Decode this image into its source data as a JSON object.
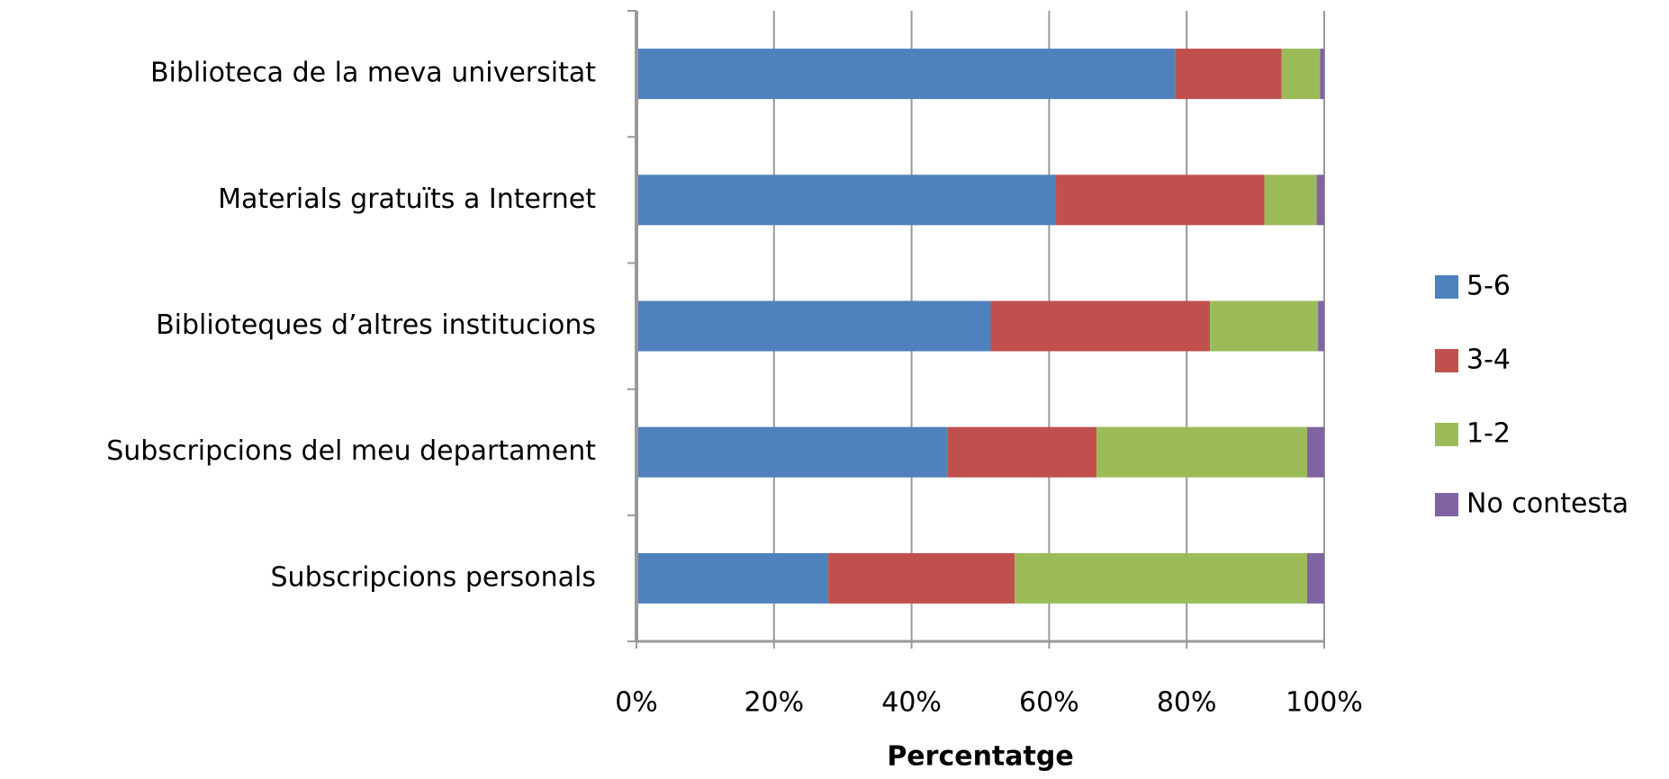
{
  "chart_data": {
    "type": "stacked-bar-horizontal",
    "categories": [
      "Biblioteca de la meva universitat",
      "Materials gratuïts a Internet",
      "Biblioteques d’altres institucions",
      "Subscripcions del meu departament",
      "Subscripcions personals"
    ],
    "series": [
      {
        "name": "5-6",
        "color": "#4f81bd",
        "values": [
          78.3,
          61.0,
          51.5,
          45.2,
          27.9
        ]
      },
      {
        "name": "3-4",
        "color": "#c0504d",
        "values": [
          15.5,
          30.3,
          31.9,
          21.7,
          27.1
        ]
      },
      {
        "name": "1-2",
        "color": "#9bbb59",
        "values": [
          5.6,
          7.6,
          15.7,
          30.6,
          42.5
        ]
      },
      {
        "name": "No contesta",
        "color": "#8064a2",
        "values": [
          0.6,
          1.1,
          0.9,
          2.5,
          2.5
        ]
      }
    ],
    "xlabel": "Percentatge",
    "xlim": [
      0,
      100
    ],
    "xticks": [
      {
        "value": 0,
        "label": "0%"
      },
      {
        "value": 20,
        "label": "20%"
      },
      {
        "value": 40,
        "label": "40%"
      },
      {
        "value": 60,
        "label": "60%"
      },
      {
        "value": 80,
        "label": "80%"
      },
      {
        "value": 100,
        "label": "100%"
      }
    ],
    "grid": true,
    "legend": "right"
  }
}
